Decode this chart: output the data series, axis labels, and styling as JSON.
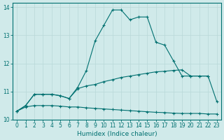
{
  "xlabel": "Humidex (Indice chaleur)",
  "x_values": [
    0,
    1,
    2,
    3,
    4,
    5,
    6,
    7,
    8,
    9,
    10,
    11,
    12,
    13,
    14,
    15,
    16,
    17,
    18,
    19,
    20,
    21,
    22,
    23
  ],
  "line1_y": [
    10.3,
    10.5,
    10.9,
    10.9,
    10.9,
    10.85,
    10.75,
    11.15,
    11.75,
    12.8,
    13.35,
    13.9,
    13.9,
    13.55,
    13.65,
    13.65,
    12.75,
    12.65,
    12.1,
    11.55,
    11.55,
    11.55,
    11.55,
    10.65
  ],
  "line2_y": [
    10.3,
    10.5,
    10.9,
    10.9,
    10.9,
    10.85,
    10.75,
    11.1,
    11.2,
    11.25,
    11.35,
    11.42,
    11.5,
    11.55,
    11.6,
    11.65,
    11.7,
    11.72,
    11.75,
    11.77,
    11.55,
    11.55,
    11.55,
    null
  ],
  "line3_y": [
    10.3,
    10.45,
    10.5,
    10.5,
    10.5,
    10.48,
    10.45,
    10.45,
    10.42,
    10.4,
    10.38,
    10.36,
    10.34,
    10.32,
    10.3,
    10.28,
    10.26,
    10.25,
    10.23,
    10.22,
    10.22,
    10.22,
    10.2,
    10.2
  ],
  "ylim": [
    10.0,
    14.0
  ],
  "xlim": [
    -0.5,
    23.5
  ],
  "yticks": [
    10,
    11,
    12,
    13,
    14
  ],
  "xticks": [
    0,
    1,
    2,
    3,
    4,
    5,
    6,
    7,
    8,
    9,
    10,
    11,
    12,
    13,
    14,
    15,
    16,
    17,
    18,
    19,
    20,
    21,
    22,
    23
  ],
  "line_color": "#007070",
  "bg_color": "#d0eaea",
  "grid_color": "#b8d8d8",
  "marker": "+",
  "marker_size": 3,
  "linewidth": 0.8
}
